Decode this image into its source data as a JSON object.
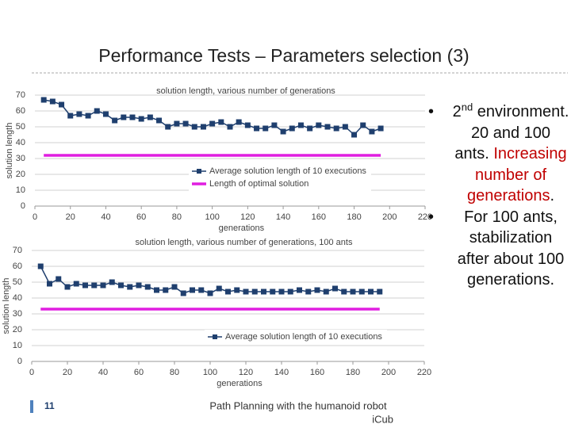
{
  "slide_title": "Performance Tests – Parameters selection (3)",
  "chart_data": [
    {
      "type": "line",
      "title": "solution length, various number of generations",
      "x_label": "generations",
      "y_label": "solution length",
      "x": [
        5,
        10,
        15,
        20,
        25,
        30,
        35,
        40,
        45,
        50,
        55,
        60,
        65,
        70,
        75,
        80,
        85,
        90,
        95,
        100,
        105,
        110,
        115,
        120,
        125,
        130,
        135,
        140,
        145,
        150,
        155,
        160,
        165,
        170,
        175,
        180,
        185,
        190,
        195
      ],
      "series": [
        {
          "name": "Average solution length of 10 executions",
          "color": "#1f3f6e",
          "marker": true,
          "values": [
            67,
            66,
            64,
            57,
            58,
            57,
            60,
            58,
            54,
            56,
            56,
            55,
            56,
            54,
            50,
            52,
            52,
            50,
            50,
            52,
            53,
            50,
            53,
            51,
            49,
            49,
            51,
            47,
            49,
            51,
            49,
            51,
            50,
            49,
            50,
            45,
            51,
            47,
            49
          ]
        },
        {
          "name": "Length of optimal solution",
          "color": "#e01ee0",
          "marker": false,
          "x": [
            5,
            195
          ],
          "values": [
            32,
            32
          ]
        }
      ],
      "xlim": [
        0,
        220
      ],
      "xticks": [
        0,
        20,
        40,
        60,
        80,
        100,
        120,
        140,
        160,
        180,
        200,
        220
      ],
      "ylim": [
        0,
        70
      ],
      "yticks": [
        0,
        10,
        20,
        30,
        40,
        50,
        60,
        70
      ],
      "grid": true
    },
    {
      "type": "line",
      "title": "solution length, various number of generations, 100 ants",
      "x_label": "generations",
      "y_label": "solution length",
      "x": [
        5,
        10,
        15,
        20,
        25,
        30,
        35,
        40,
        45,
        50,
        55,
        60,
        65,
        70,
        75,
        80,
        85,
        90,
        95,
        100,
        105,
        110,
        115,
        120,
        125,
        130,
        135,
        140,
        145,
        150,
        155,
        160,
        165,
        170,
        175,
        180,
        185,
        190,
        195
      ],
      "series": [
        {
          "name": "Average solution length of 10 executions",
          "color": "#1f3f6e",
          "marker": true,
          "values": [
            60,
            49,
            52,
            47,
            49,
            48,
            48,
            48,
            50,
            48,
            47,
            48,
            47,
            45,
            45,
            47,
            43,
            45,
            45,
            43,
            46,
            44,
            45,
            44,
            44,
            44,
            44,
            44,
            44,
            45,
            44,
            45,
            44,
            46,
            44,
            44,
            44,
            44,
            44
          ]
        },
        {
          "color": "#e01ee0",
          "marker": false,
          "x": [
            5,
            195
          ],
          "values": [
            33,
            33
          ]
        }
      ],
      "xlim": [
        0,
        220
      ],
      "xticks": [
        0,
        20,
        40,
        60,
        80,
        100,
        120,
        140,
        160,
        180,
        200,
        220
      ],
      "ylim": [
        0,
        70
      ],
      "yticks": [
        0,
        10,
        20,
        30,
        40,
        50,
        60,
        70
      ],
      "grid": true
    }
  ],
  "bullets": [
    {
      "parts": [
        "2",
        "nd",
        " environment. 20 and 100 ants. ",
        "Increasing number of generations",
        "."
      ]
    },
    {
      "text": "For 100 ants, stabilization after about 100 generations."
    }
  ],
  "footer": {
    "page": "11",
    "text": "Path Planning with the humanoid robot",
    "text2": "iCub"
  }
}
